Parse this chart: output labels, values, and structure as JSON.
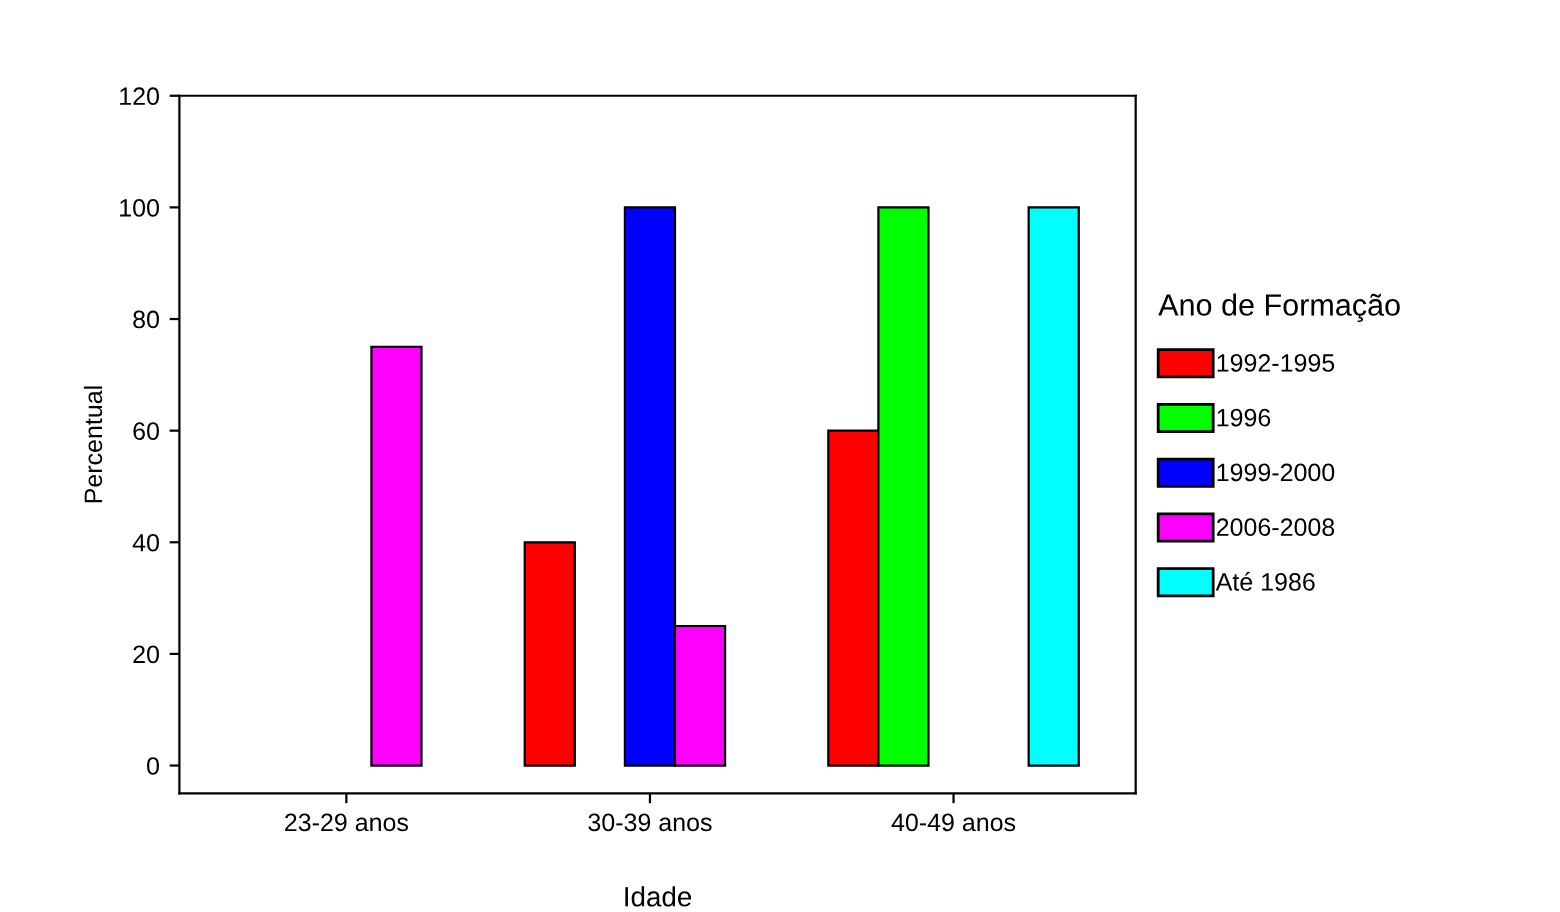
{
  "chart_data": {
    "type": "bar",
    "xlabel": "Idade",
    "ylabel": "Percentual",
    "legend_title": "Ano de Formação",
    "categories": [
      "23-29 anos",
      "30-39 anos",
      "40-49 anos"
    ],
    "series": [
      {
        "name": "1992-1995",
        "color": "#ff0000",
        "values": [
          null,
          40,
          60
        ]
      },
      {
        "name": "1996",
        "color": "#00ff00",
        "values": [
          null,
          null,
          100
        ]
      },
      {
        "name": "1999-2000",
        "color": "#0000ff",
        "values": [
          null,
          100,
          null
        ]
      },
      {
        "name": "2006-2008",
        "color": "#ff00ff",
        "values": [
          75,
          25,
          null
        ]
      },
      {
        "name": "Até 1986",
        "color": "#00ffff",
        "values": [
          null,
          null,
          100
        ]
      }
    ],
    "ylim": [
      -5,
      120
    ],
    "yticks": [
      0,
      20,
      40,
      60,
      80,
      100,
      120
    ],
    "grid": false,
    "legend": "right"
  }
}
